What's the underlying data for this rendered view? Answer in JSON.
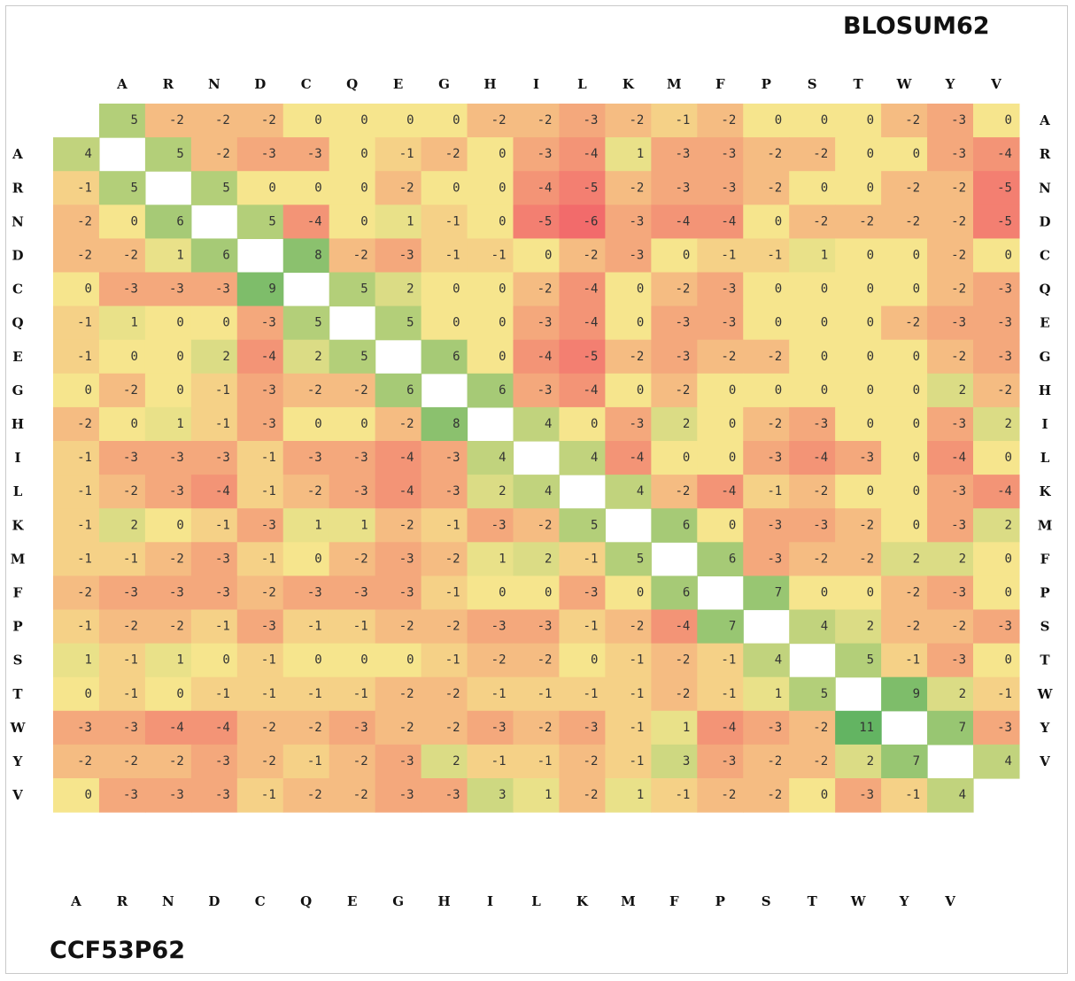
{
  "titles": {
    "top_matrix": "BLOSUM62",
    "bottom_matrix": "CCF53P62"
  },
  "chart_data": {
    "type": "heatmap",
    "amino_acids": [
      "A",
      "R",
      "N",
      "D",
      "C",
      "Q",
      "E",
      "G",
      "H",
      "I",
      "L",
      "K",
      "M",
      "F",
      "P",
      "S",
      "T",
      "W",
      "Y",
      "V"
    ],
    "upper_matrix_name": "BLOSUM62",
    "lower_matrix_name": "CCF53P62",
    "upper_triangle": [
      {
        "row_label": "A",
        "values": [
          5,
          -2,
          -2,
          -2,
          0,
          0,
          0,
          0,
          -2,
          -2,
          -3,
          -2,
          -1,
          -2,
          0,
          0,
          0,
          -2,
          -3,
          0
        ]
      },
      {
        "row_label": "R",
        "values": [
          5,
          -2,
          -3,
          -3,
          0,
          -1,
          -2,
          0,
          -3,
          -4,
          1,
          -3,
          -3,
          -2,
          -2,
          0,
          0,
          -3,
          -4
        ]
      },
      {
        "row_label": "N",
        "values": [
          5,
          0,
          0,
          0,
          -2,
          0,
          0,
          -4,
          -5,
          -2,
          -3,
          -3,
          -2,
          0,
          0,
          -2,
          -2,
          -5
        ]
      },
      {
        "row_label": "D",
        "values": [
          5,
          -4,
          0,
          1,
          -1,
          0,
          -5,
          -6,
          -3,
          -4,
          -4,
          0,
          -2,
          -2,
          -2,
          -2,
          -5
        ]
      },
      {
        "row_label": "C",
        "values": [
          8,
          -2,
          -3,
          -1,
          -1,
          0,
          -2,
          -3,
          0,
          -1,
          -1,
          1,
          0,
          0,
          -2,
          0
        ]
      },
      {
        "row_label": "Q",
        "values": [
          5,
          2,
          0,
          0,
          -2,
          -4,
          0,
          -2,
          -3,
          0,
          0,
          0,
          0,
          -2,
          -3
        ]
      },
      {
        "row_label": "E",
        "values": [
          5,
          0,
          0,
          -3,
          -4,
          0,
          -3,
          -3,
          0,
          0,
          0,
          -2,
          -3,
          -3
        ]
      },
      {
        "row_label": "G",
        "values": [
          6,
          0,
          -4,
          -5,
          -2,
          -3,
          -2,
          -2,
          0,
          0,
          0,
          -2,
          -3
        ]
      },
      {
        "row_label": "H",
        "values": [
          6,
          -3,
          -4,
          0,
          -2,
          0,
          0,
          0,
          0,
          0,
          2,
          -2
        ]
      },
      {
        "row_label": "I",
        "values": [
          4,
          0,
          -3,
          2,
          0,
          -2,
          -3,
          0,
          0,
          -3,
          2
        ]
      },
      {
        "row_label": "L",
        "values": [
          4,
          -4,
          0,
          0,
          -3,
          -4,
          -3,
          0,
          -4,
          0
        ]
      },
      {
        "row_label": "K",
        "values": [
          4,
          -2,
          -4,
          -1,
          -2,
          0,
          0,
          -3,
          -4
        ]
      },
      {
        "row_label": "M",
        "values": [
          6,
          0,
          -3,
          -3,
          -2,
          0,
          -3,
          2
        ]
      },
      {
        "row_label": "F",
        "values": [
          6,
          -3,
          -2,
          -2,
          2,
          2,
          0
        ]
      },
      {
        "row_label": "P",
        "values": [
          7,
          0,
          0,
          -2,
          -3,
          0
        ]
      },
      {
        "row_label": "S",
        "values": [
          4,
          2,
          -2,
          -2,
          -3
        ]
      },
      {
        "row_label": "T",
        "values": [
          5,
          -1,
          -3,
          0
        ]
      },
      {
        "row_label": "W",
        "values": [
          9,
          2,
          -1
        ]
      },
      {
        "row_label": "Y",
        "values": [
          7,
          -3
        ]
      },
      {
        "row_label": "V",
        "values": [
          4
        ]
      }
    ],
    "lower_triangle": [
      {
        "row_label": "A",
        "values": [
          4
        ]
      },
      {
        "row_label": "R",
        "values": [
          -1,
          5
        ]
      },
      {
        "row_label": "N",
        "values": [
          -2,
          0,
          6
        ]
      },
      {
        "row_label": "D",
        "values": [
          -2,
          -2,
          1,
          6
        ]
      },
      {
        "row_label": "C",
        "values": [
          0,
          -3,
          -3,
          -3,
          9
        ]
      },
      {
        "row_label": "Q",
        "values": [
          -1,
          1,
          0,
          0,
          -3,
          5
        ]
      },
      {
        "row_label": "E",
        "values": [
          -1,
          0,
          0,
          2,
          -4,
          2,
          5
        ]
      },
      {
        "row_label": "G",
        "values": [
          0,
          -2,
          0,
          -1,
          -3,
          -2,
          -2,
          6
        ]
      },
      {
        "row_label": "H",
        "values": [
          -2,
          0,
          1,
          -1,
          -3,
          0,
          0,
          -2,
          8
        ]
      },
      {
        "row_label": "I",
        "values": [
          -1,
          -3,
          -3,
          -3,
          -1,
          -3,
          -3,
          -4,
          -3,
          4
        ]
      },
      {
        "row_label": "L",
        "values": [
          -1,
          -2,
          -3,
          -4,
          -1,
          -2,
          -3,
          -4,
          -3,
          2,
          4
        ]
      },
      {
        "row_label": "K",
        "values": [
          -1,
          2,
          0,
          -1,
          -3,
          1,
          1,
          -2,
          -1,
          -3,
          -2,
          5
        ]
      },
      {
        "row_label": "M",
        "values": [
          -1,
          -1,
          -2,
          -3,
          -1,
          0,
          -2,
          -3,
          -2,
          1,
          2,
          -1,
          5
        ]
      },
      {
        "row_label": "F",
        "values": [
          -2,
          -3,
          -3,
          -3,
          -2,
          -3,
          -3,
          -3,
          -1,
          0,
          0,
          -3,
          0,
          6
        ]
      },
      {
        "row_label": "P",
        "values": [
          -1,
          -2,
          -2,
          -1,
          -3,
          -1,
          -1,
          -2,
          -2,
          -3,
          -3,
          -1,
          -2,
          -4,
          7
        ]
      },
      {
        "row_label": "S",
        "values": [
          1,
          -1,
          1,
          0,
          -1,
          0,
          0,
          0,
          -1,
          -2,
          -2,
          0,
          -1,
          -2,
          -1,
          4
        ]
      },
      {
        "row_label": "T",
        "values": [
          0,
          -1,
          0,
          -1,
          -1,
          -1,
          -1,
          -2,
          -2,
          -1,
          -1,
          -1,
          -1,
          -2,
          -1,
          1,
          5
        ]
      },
      {
        "row_label": "W",
        "values": [
          -3,
          -3,
          -4,
          -4,
          -2,
          -2,
          -3,
          -2,
          -2,
          -3,
          -2,
          -3,
          -1,
          1,
          -4,
          -3,
          -2,
          11
        ]
      },
      {
        "row_label": "Y",
        "values": [
          -2,
          -2,
          -2,
          -3,
          -2,
          -1,
          -2,
          -3,
          2,
          -1,
          -1,
          -2,
          -1,
          3,
          -3,
          -2,
          -2,
          2,
          7
        ]
      },
      {
        "row_label": "V",
        "values": [
          0,
          -3,
          -3,
          -3,
          -1,
          -2,
          -2,
          -3,
          -3,
          3,
          1,
          -2,
          1,
          -1,
          -2,
          -2,
          0,
          -3,
          -1,
          4
        ]
      }
    ],
    "color_scale": {
      "low": "#f26b6b",
      "mid": "#f6e58d",
      "high": "#63b462",
      "domain": [
        -6,
        0,
        11
      ]
    },
    "diagonal_color": "#ffffff",
    "grid": false
  }
}
